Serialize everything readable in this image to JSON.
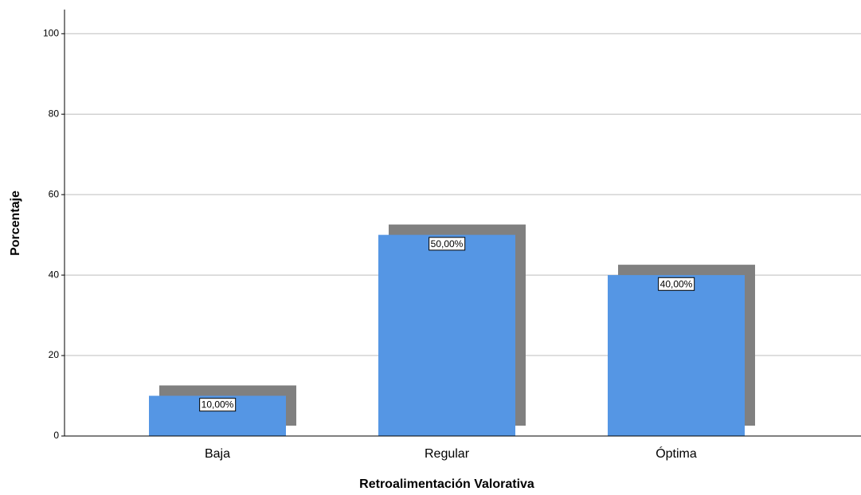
{
  "chart_data": {
    "type": "bar",
    "x_label": "Retroalimentación Valorativa",
    "y_label": "Porcentaje",
    "categories": [
      "Baja",
      "Regular",
      "Óptima"
    ],
    "values": [
      10,
      50,
      40
    ],
    "value_labels": [
      "10,00%",
      "50,00%",
      "40,00%"
    ],
    "color": "#5596e4",
    "shadow_color": "#808080",
    "ylim": [
      0,
      106
    ],
    "yticks": [
      0,
      20,
      40,
      60,
      80,
      100
    ],
    "grid": true
  }
}
